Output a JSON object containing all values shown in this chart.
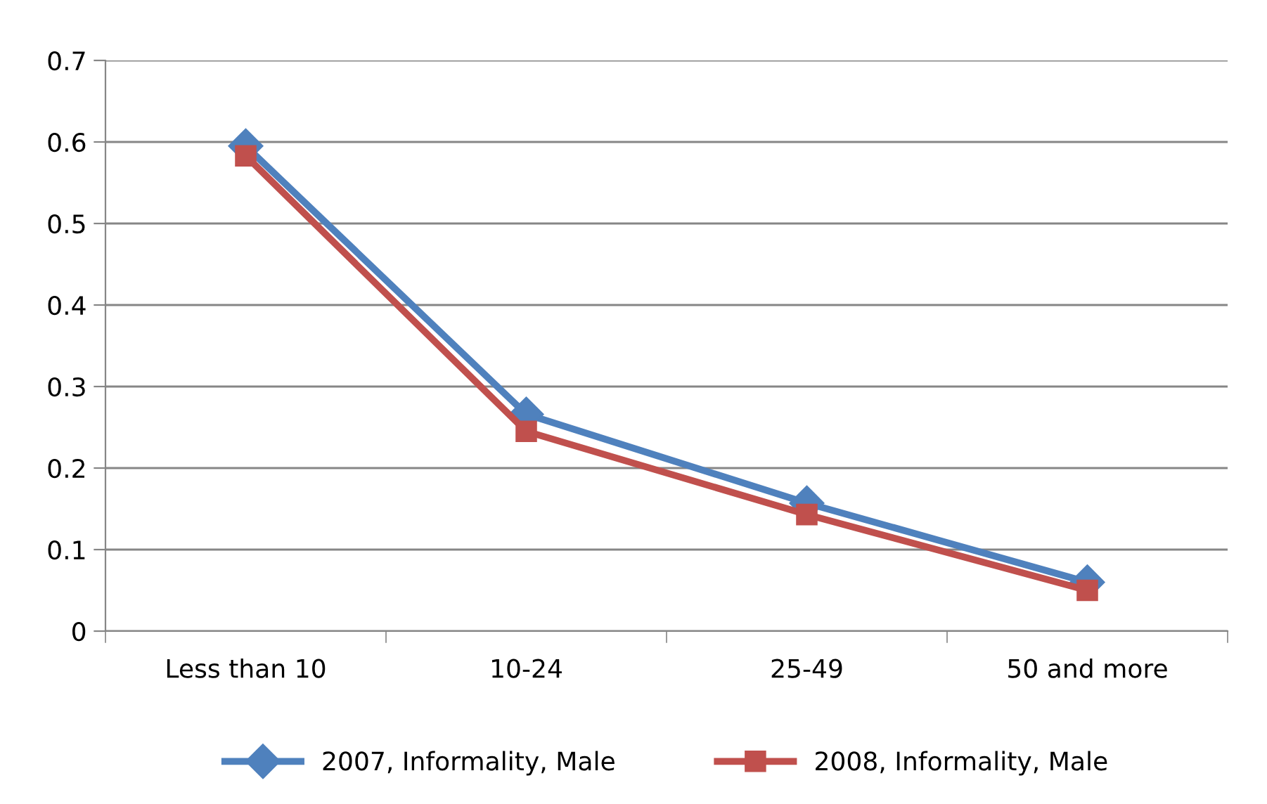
{
  "chart_data": {
    "type": "line",
    "categories": [
      "Less than 10",
      "10-24",
      "25-49",
      "50 and more"
    ],
    "series": [
      {
        "name": "2007, Informality, Male",
        "color": "#4f81bd",
        "marker": "diamond",
        "values": [
          0.595,
          0.266,
          0.157,
          0.06
        ]
      },
      {
        "name": "2008, Informality, Male",
        "color": "#c0504d",
        "marker": "square",
        "values": [
          0.583,
          0.245,
          0.143,
          0.05
        ]
      }
    ],
    "ylim": [
      0,
      0.7
    ],
    "yticks": [
      {
        "value": 0,
        "label": "0"
      },
      0.1,
      0.2,
      0.3,
      0.4,
      0.5,
      0.6,
      0.7
    ],
    "grid": "y",
    "legend": "bottom",
    "line_style": "solid"
  }
}
